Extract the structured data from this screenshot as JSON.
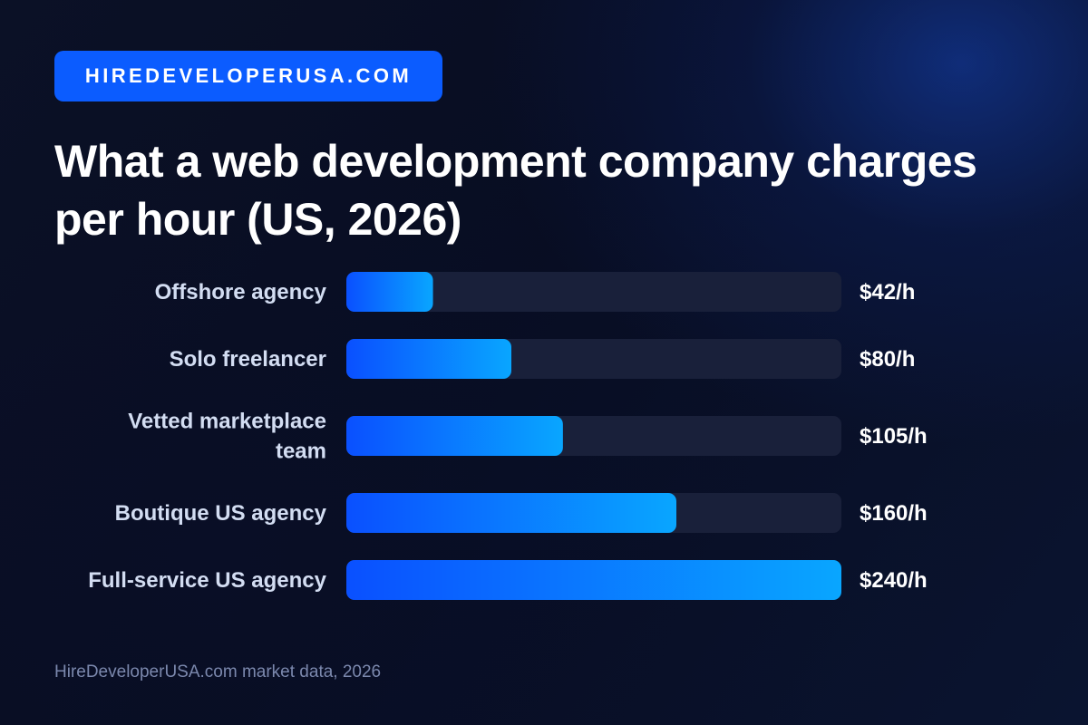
{
  "brand": {
    "label": "HIREDEVELOPERUSA.COM",
    "color": "#0b5cff"
  },
  "title": "What a web development company charges per hour (US, 2026)",
  "footer": "HireDeveloperUSA.com market data, 2026",
  "chart_data": {
    "type": "bar",
    "orientation": "horizontal",
    "title": "What a web development company charges per hour (US, 2026)",
    "categories": [
      "Offshore agency",
      "Solo freelancer",
      "Vetted marketplace team",
      "Boutique US agency",
      "Full-service US agency"
    ],
    "category_lines": [
      [
        "Offshore agency"
      ],
      [
        "Solo freelancer"
      ],
      [
        "Vetted marketplace",
        "team"
      ],
      [
        "Boutique US agency"
      ],
      [
        "Full-service US agency"
      ]
    ],
    "values": [
      42,
      80,
      105,
      160,
      240
    ],
    "value_labels": [
      "$42/h",
      "$80/h",
      "$105/h",
      "$160/h",
      "$240/h"
    ],
    "unit": "$/h",
    "xlim": [
      0,
      240
    ],
    "grid": false,
    "legend": "none",
    "colors": {
      "bar_start": "#0a50ff",
      "bar_end": "#09a6ff",
      "track": "#19203a"
    }
  }
}
